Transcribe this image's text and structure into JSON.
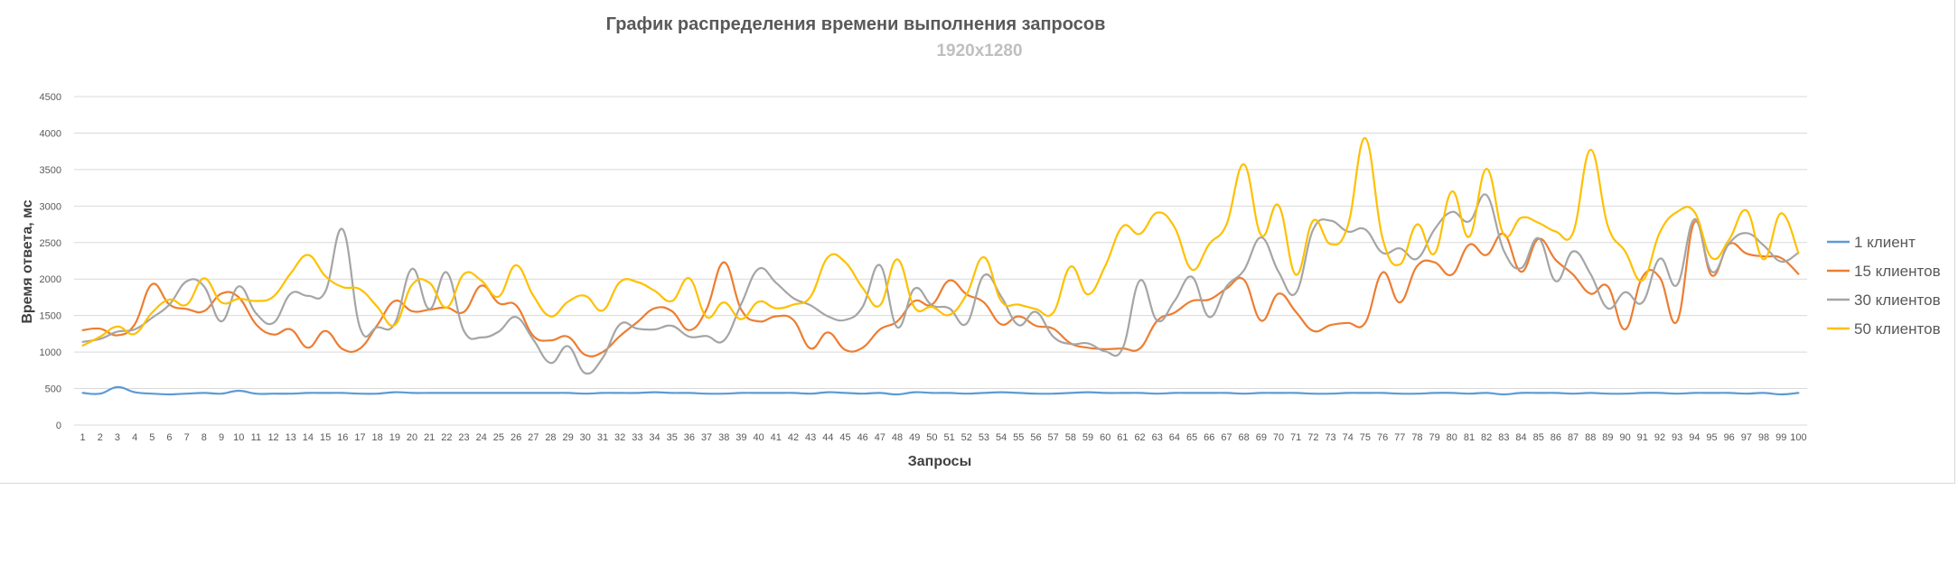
{
  "chart_data": {
    "type": "line",
    "title": "График распределения времени выполнения запросов",
    "subtitle": "1920x1280",
    "xlabel": "Запросы",
    "ylabel": "Время ответа, мс",
    "ylim": [
      0,
      4500
    ],
    "yticks": [
      0,
      500,
      1000,
      1500,
      2000,
      2500,
      3000,
      3500,
      4000,
      4500
    ],
    "categories": [
      1,
      2,
      3,
      4,
      5,
      6,
      7,
      8,
      9,
      10,
      11,
      12,
      13,
      14,
      15,
      16,
      17,
      18,
      19,
      20,
      21,
      22,
      23,
      24,
      25,
      26,
      27,
      28,
      29,
      30,
      31,
      32,
      33,
      34,
      35,
      36,
      37,
      38,
      39,
      40,
      41,
      42,
      43,
      44,
      45,
      46,
      47,
      48,
      49,
      50,
      51,
      52,
      53,
      54,
      55,
      56,
      57,
      58,
      59,
      60,
      61,
      62,
      63,
      64,
      65,
      66,
      67,
      68,
      69,
      70,
      71,
      72,
      73,
      74,
      75,
      76,
      77,
      78,
      79,
      80,
      81,
      82,
      83,
      84,
      85,
      86,
      87,
      88,
      89,
      90,
      91,
      92,
      93,
      94,
      95,
      96,
      97,
      98,
      99,
      100
    ],
    "grid": true,
    "legend_position": "right",
    "series": [
      {
        "name": "1 клиент",
        "color": "#5b9bd5",
        "values": [
          440,
          430,
          520,
          450,
          430,
          420,
          430,
          440,
          430,
          470,
          430,
          430,
          430,
          440,
          440,
          440,
          430,
          430,
          450,
          440,
          440,
          440,
          440,
          440,
          440,
          440,
          440,
          440,
          440,
          430,
          440,
          440,
          440,
          450,
          440,
          440,
          430,
          430,
          440,
          440,
          440,
          440,
          430,
          450,
          440,
          430,
          440,
          420,
          450,
          440,
          440,
          430,
          440,
          450,
          440,
          430,
          430,
          440,
          450,
          440,
          440,
          440,
          430,
          440,
          440,
          440,
          440,
          430,
          440,
          440,
          440,
          430,
          430,
          440,
          440,
          440,
          430,
          430,
          440,
          440,
          430,
          440,
          420,
          440,
          440,
          440,
          430,
          440,
          430,
          430,
          440,
          440,
          430,
          440,
          440,
          440,
          430,
          440,
          420,
          440
        ]
      },
      {
        "name": "15 клиентов",
        "color": "#ed7d31",
        "values": [
          1300,
          1320,
          1230,
          1380,
          1930,
          1650,
          1590,
          1560,
          1800,
          1750,
          1380,
          1240,
          1310,
          1060,
          1290,
          1040,
          1050,
          1370,
          1700,
          1560,
          1580,
          1610,
          1550,
          1910,
          1670,
          1640,
          1220,
          1160,
          1210,
          960,
          1000,
          1220,
          1410,
          1600,
          1560,
          1300,
          1590,
          2230,
          1580,
          1420,
          1490,
          1440,
          1050,
          1270,
          1030,
          1060,
          1310,
          1420,
          1700,
          1650,
          1980,
          1790,
          1680,
          1380,
          1490,
          1360,
          1320,
          1120,
          1060,
          1040,
          1050,
          1050,
          1430,
          1540,
          1700,
          1720,
          1870,
          1990,
          1430,
          1800,
          1550,
          1290,
          1370,
          1400,
          1400,
          2090,
          1680,
          2180,
          2230,
          2060,
          2470,
          2330,
          2620,
          2100,
          2550,
          2260,
          2060,
          1800,
          1900,
          1310,
          2030,
          2020,
          1420,
          2780,
          2050,
          2480,
          2350,
          2310,
          2290,
          2070
        ]
      },
      {
        "name": "30 клиентов",
        "color": "#a5a5a5",
        "values": [
          1140,
          1180,
          1280,
          1310,
          1470,
          1650,
          1970,
          1900,
          1420,
          1900,
          1530,
          1400,
          1800,
          1770,
          1830,
          2680,
          1330,
          1340,
          1390,
          2140,
          1590,
          2090,
          1290,
          1200,
          1280,
          1480,
          1170,
          850,
          1080,
          710,
          920,
          1380,
          1320,
          1310,
          1360,
          1210,
          1220,
          1160,
          1660,
          2140,
          1950,
          1740,
          1640,
          1490,
          1440,
          1620,
          2190,
          1340,
          1870,
          1640,
          1600,
          1390,
          2050,
          1760,
          1370,
          1550,
          1210,
          1110,
          1120,
          1010,
          1050,
          1980,
          1430,
          1700,
          2030,
          1480,
          1900,
          2120,
          2570,
          2100,
          1810,
          2680,
          2800,
          2650,
          2680,
          2360,
          2420,
          2280,
          2680,
          2920,
          2790,
          3150,
          2390,
          2150,
          2560,
          1970,
          2380,
          2070,
          1600,
          1820,
          1680,
          2280,
          1920,
          2820,
          2100,
          2490,
          2630,
          2460,
          2240,
          2360
        ]
      },
      {
        "name": "50 клиентов",
        "color": "#ffc000",
        "values": [
          1090,
          1210,
          1350,
          1250,
          1540,
          1720,
          1650,
          2010,
          1680,
          1730,
          1700,
          1760,
          2080,
          2330,
          2040,
          1890,
          1860,
          1620,
          1370,
          1920,
          1950,
          1610,
          2070,
          1980,
          1760,
          2190,
          1770,
          1490,
          1690,
          1770,
          1570,
          1960,
          1960,
          1840,
          1700,
          2010,
          1480,
          1680,
          1450,
          1690,
          1600,
          1650,
          1760,
          2300,
          2230,
          1880,
          1640,
          2270,
          1610,
          1620,
          1510,
          1790,
          2300,
          1700,
          1650,
          1590,
          1540,
          2170,
          1790,
          2180,
          2720,
          2620,
          2910,
          2710,
          2130,
          2480,
          2750,
          3570,
          2600,
          3010,
          2060,
          2800,
          2480,
          2730,
          3930,
          2560,
          2200,
          2750,
          2350,
          3200,
          2580,
          3510,
          2610,
          2840,
          2770,
          2650,
          2640,
          3770,
          2730,
          2380,
          1980,
          2640,
          2920,
          2920,
          2290,
          2540,
          2940,
          2270,
          2900,
          2360
        ]
      }
    ]
  }
}
